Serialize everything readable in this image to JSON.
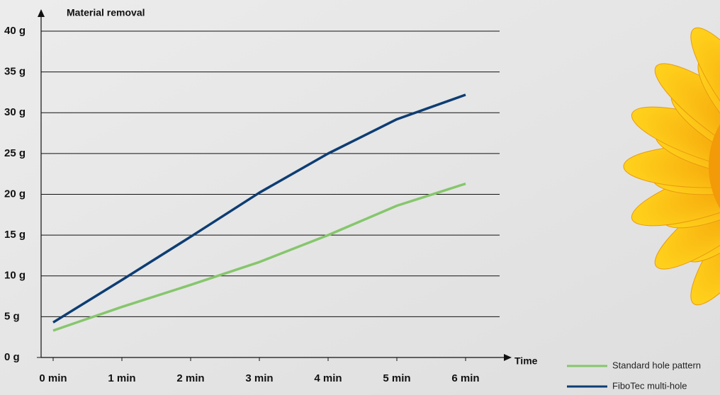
{
  "chart_data": {
    "type": "line",
    "y_label": "Material removal",
    "x_label": "Time",
    "x": [
      0,
      1,
      2,
      3,
      4,
      5,
      6
    ],
    "series": [
      {
        "name": "Standard hole pattern",
        "color": "#86c66c",
        "values": [
          3.3,
          6.2,
          8.9,
          11.7,
          15.0,
          18.6,
          21.3
        ]
      },
      {
        "name": "FiboTec multi-hole",
        "color": "#0d3d73",
        "values": [
          4.3,
          9.5,
          14.8,
          20.2,
          25.0,
          29.2,
          32.2
        ]
      }
    ],
    "xlim": [
      0,
      6
    ],
    "xticks": [
      {
        "value": 0,
        "label": "0 min"
      },
      {
        "value": 1,
        "label": "1 min"
      },
      {
        "value": 2,
        "label": "2 min"
      },
      {
        "value": 3,
        "label": "3 min"
      },
      {
        "value": 4,
        "label": "4 min"
      },
      {
        "value": 5,
        "label": "5 min"
      },
      {
        "value": 6,
        "label": "6 min"
      }
    ],
    "ylim": [
      0,
      40
    ],
    "yticks": [
      {
        "value": 0,
        "label": "0 g"
      },
      {
        "value": 5,
        "label": "5 g"
      },
      {
        "value": 10,
        "label": "10 g"
      },
      {
        "value": 15,
        "label": "15 g"
      },
      {
        "value": 20,
        "label": "20 g"
      },
      {
        "value": 25,
        "label": "25 g"
      },
      {
        "value": 30,
        "label": "30 g"
      },
      {
        "value": 35,
        "label": "35 g"
      },
      {
        "value": 40,
        "label": "40 g"
      }
    ],
    "grid": true
  }
}
